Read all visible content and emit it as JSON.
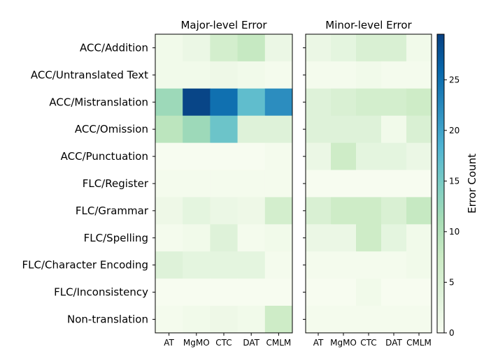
{
  "chart_data": {
    "type": "heatmap",
    "rows": [
      "ACC/Addition",
      "ACC/Untranslated Text",
      "ACC/Mistranslation",
      "ACC/Omission",
      "ACC/Punctuation",
      "FLC/Register",
      "FLC/Grammar",
      "FLC/Spelling",
      "FLC/Character Encoding",
      "FLC/Inconsistency",
      "Non-translation"
    ],
    "columns": [
      "AT",
      "MgMO",
      "CTC",
      "DAT",
      "CMLM"
    ],
    "panels": [
      {
        "title": "Major-level Error",
        "values": [
          [
            1,
            2,
            6,
            8,
            2
          ],
          [
            1,
            1,
            1.5,
            1,
            0.5
          ],
          [
            12,
            29,
            25,
            17,
            22
          ],
          [
            9,
            12,
            16,
            4,
            4
          ],
          [
            0,
            0,
            0,
            0,
            0.5
          ],
          [
            0.5,
            0.5,
            0.5,
            0.5,
            0.5
          ],
          [
            1.5,
            3,
            2,
            1.5,
            6
          ],
          [
            0.5,
            1,
            4,
            0.5,
            1
          ],
          [
            4,
            3,
            3,
            3,
            0.5
          ],
          [
            0,
            0,
            0,
            0,
            0
          ],
          [
            0.5,
            1,
            1.5,
            1,
            7
          ]
        ]
      },
      {
        "title": "Minor-level Error",
        "values": [
          [
            2,
            3,
            5,
            5,
            1
          ],
          [
            0.5,
            0.5,
            1,
            0.5,
            0.5
          ],
          [
            4,
            5,
            6,
            6,
            7
          ],
          [
            4,
            4,
            4,
            1,
            5
          ],
          [
            2,
            7,
            3,
            3,
            2
          ],
          [
            0,
            0,
            0,
            0,
            0
          ],
          [
            5,
            7,
            7,
            5,
            8
          ],
          [
            2,
            2,
            7,
            3,
            1
          ],
          [
            0.5,
            0.5,
            0.5,
            0.5,
            1
          ],
          [
            0,
            0,
            1,
            0,
            0
          ],
          [
            0.5,
            0.5,
            0.5,
            0.5,
            0.5
          ]
        ]
      }
    ],
    "colorbar": {
      "label": "Error Count",
      "colormap": "GnBu",
      "vmin": 0,
      "vmax": 29.5,
      "ticks": [
        0,
        5,
        10,
        15,
        20,
        25
      ]
    }
  }
}
